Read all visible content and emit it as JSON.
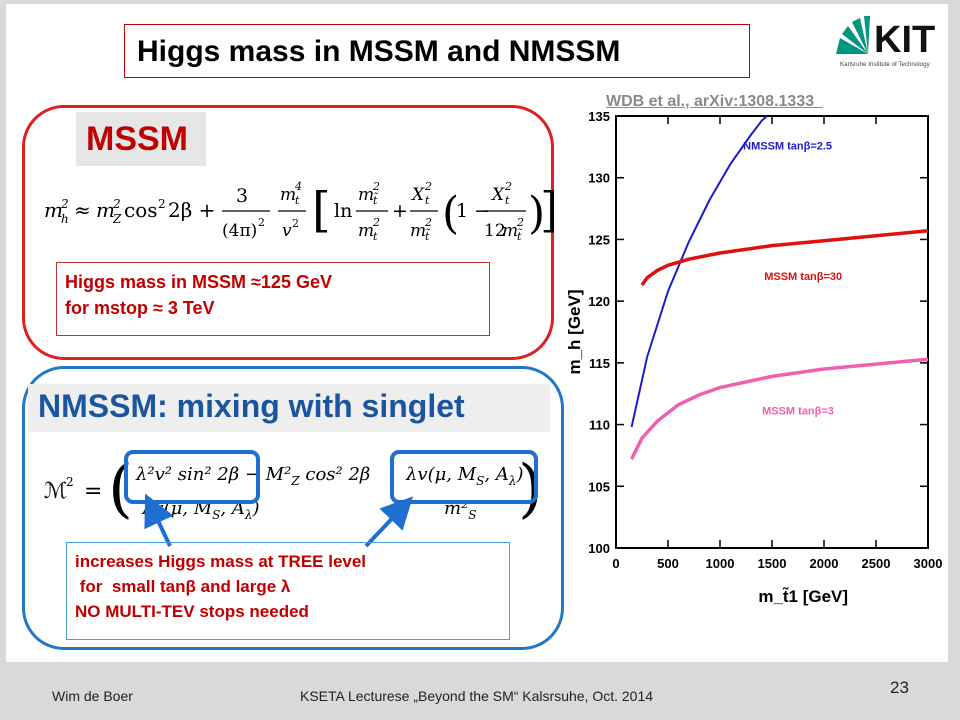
{
  "title": "Higgs mass in MSSM and NMSSM",
  "logo": {
    "text": "KIT",
    "subtitle": "Karlsruhe Institute of Technology"
  },
  "reference": "WDB et al., arXiv:1308.1333  ",
  "mssm": {
    "label": "MSSM",
    "note_line1": "Higgs mass in MSSM  ≈125 GeV",
    "note_line2": "for mstop  ≈ 3 TeV"
  },
  "nmssm": {
    "label": "NMSSM: mixing with singlet",
    "note_line1": "increases Higgs mass  at TREE level",
    "note_line2": " for  small tanβ and large λ",
    "note_line3": "NO MULTI-TEV stops needed"
  },
  "footer": {
    "author": "Wim de Boer",
    "event": "KSETA Lecturese „Beyond the SM“ Kalsrsuhe, Oct. 2014",
    "page": "23"
  },
  "chart_data": {
    "type": "line",
    "xlabel": "m_t̃1 [GeV]",
    "ylabel": "m_h [GeV]",
    "xlim": [
      0,
      3000
    ],
    "ylim": [
      100,
      135
    ],
    "xticks": [
      0,
      500,
      1000,
      1500,
      2000,
      2500,
      3000
    ],
    "yticks": [
      100,
      105,
      110,
      115,
      120,
      125,
      130,
      135
    ],
    "grid": false,
    "series": [
      {
        "name": "NMSSM tanβ=2.5",
        "color": "#1c1ccc",
        "x": [
          150,
          300,
          500,
          700,
          900,
          1100,
          1300,
          1400,
          1450
        ],
        "y": [
          109.8,
          115.5,
          120.8,
          124.8,
          128.2,
          131.1,
          133.5,
          134.6,
          135
        ]
      },
      {
        "name": "MSSM tanβ=30",
        "color": "#e01010",
        "x": [
          250,
          300,
          400,
          500,
          700,
          1000,
          1500,
          2000,
          2500,
          3000
        ],
        "y": [
          121.3,
          121.9,
          122.5,
          122.9,
          123.4,
          123.9,
          124.5,
          124.9,
          125.3,
          125.7
        ]
      },
      {
        "name": "MSSM tanβ=3",
        "color": "#f060b0",
        "x": [
          150,
          250,
          400,
          600,
          800,
          1000,
          1500,
          2000,
          2500,
          3000
        ],
        "y": [
          107.2,
          108.9,
          110.3,
          111.6,
          112.4,
          113.0,
          113.9,
          114.5,
          114.9,
          115.3
        ]
      }
    ]
  }
}
